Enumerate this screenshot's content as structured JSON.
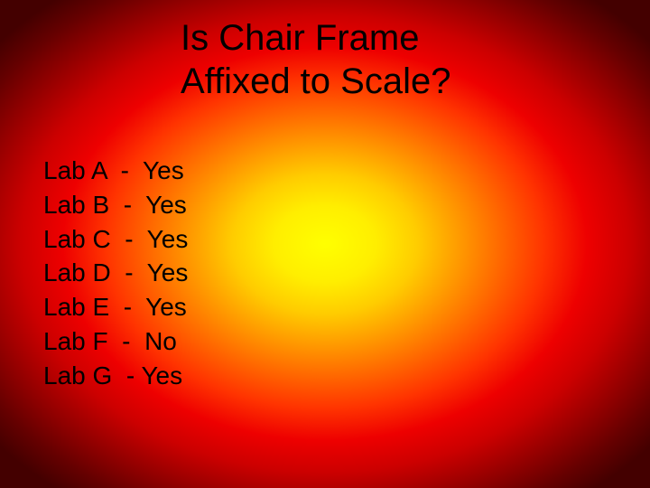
{
  "slide": {
    "title_line1": "Is Chair Frame",
    "title_line2": "Affixed to Scale?",
    "title_fontsize": 40,
    "list_fontsize": 28,
    "text_color": "#000000",
    "background": {
      "type": "radial-gradient",
      "shape": "ellipse",
      "center": "50% 50%",
      "stops": [
        {
          "color": "#ffff00",
          "at": "0%"
        },
        {
          "color": "#ffee00",
          "at": "12%"
        },
        {
          "color": "#ffcc00",
          "at": "22%"
        },
        {
          "color": "#ff9900",
          "at": "32%"
        },
        {
          "color": "#ff6600",
          "at": "42%"
        },
        {
          "color": "#ff3300",
          "at": "52%"
        },
        {
          "color": "#ee0000",
          "at": "62%"
        },
        {
          "color": "#cc0000",
          "at": "72%"
        },
        {
          "color": "#990000",
          "at": "82%"
        },
        {
          "color": "#660000",
          "at": "92%"
        },
        {
          "color": "#440000",
          "at": "100%"
        }
      ]
    },
    "rows": [
      {
        "label": "Lab A",
        "sep": "  -  ",
        "value": "Yes"
      },
      {
        "label": "Lab B",
        "sep": "  -  ",
        "value": "Yes"
      },
      {
        "label": "Lab C",
        "sep": "  -  ",
        "value": "Yes"
      },
      {
        "label": "Lab D",
        "sep": "  -  ",
        "value": "Yes"
      },
      {
        "label": "Lab E",
        "sep": "  -  ",
        "value": "Yes"
      },
      {
        "label": "Lab F",
        "sep": "  -  ",
        "value": "No"
      },
      {
        "label": "Lab G",
        "sep": "  - ",
        "value": "Yes"
      }
    ]
  }
}
